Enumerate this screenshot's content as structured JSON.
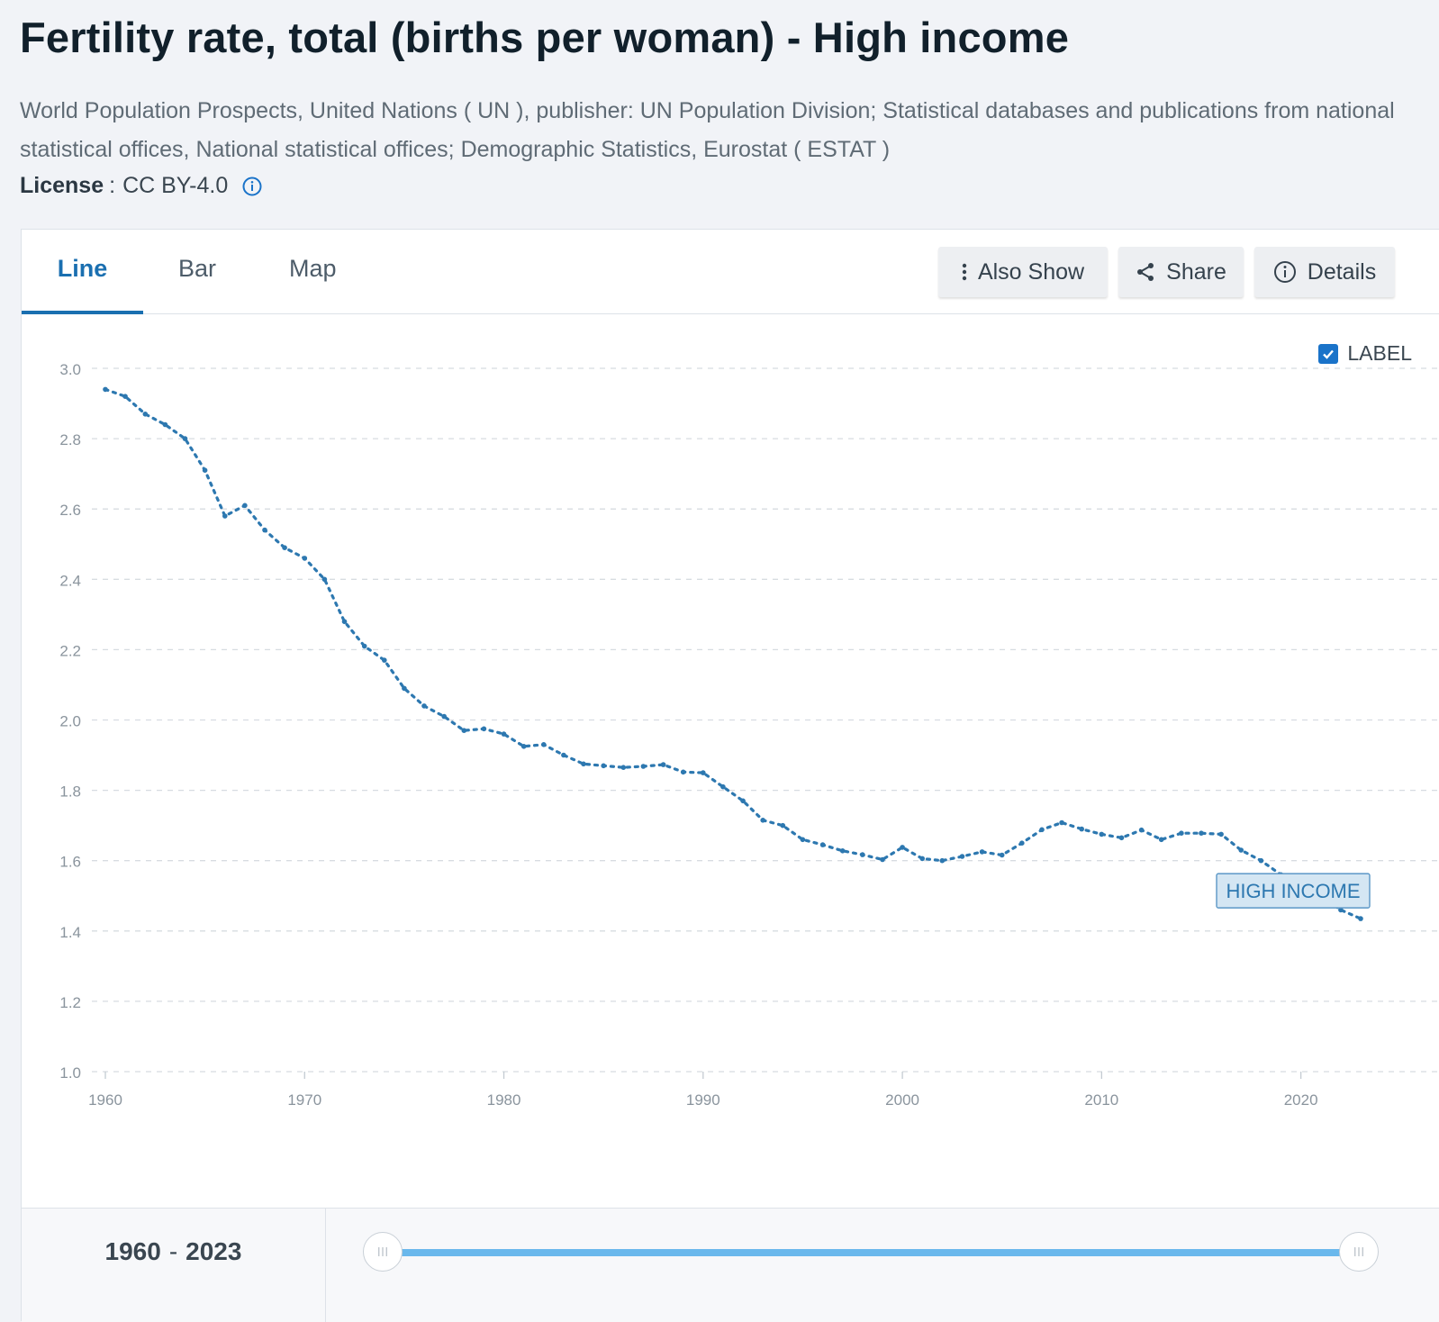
{
  "header": {
    "title": "Fertility rate, total (births per woman) - High income",
    "source": "World Population Prospects, United Nations ( UN ), publisher: UN Population Division; Statistical databases and publications from national statistical offices, National statistical offices; Demographic Statistics, Eurostat ( ESTAT )",
    "license_label": "License",
    "license_sep": ":",
    "license_value": "CC BY-4.0"
  },
  "tabs": [
    {
      "label": "Line",
      "active": true
    },
    {
      "label": "Bar",
      "active": false
    },
    {
      "label": "Map",
      "active": false
    }
  ],
  "toolbar": {
    "also_show": "Also Show",
    "share": "Share",
    "details": "Details"
  },
  "label_toggle": {
    "text": "LABEL",
    "checked": true
  },
  "range": {
    "start": "1960",
    "sep": "-",
    "end": "2023"
  },
  "colors": {
    "accent": "#1a6fb0",
    "line": "#2d78b0",
    "slider": "#6ab8ec",
    "checkbox": "#1a73c9"
  },
  "chart_data": {
    "type": "line",
    "title": "Fertility rate, total (births per woman) - High income",
    "xlabel": "",
    "ylabel": "",
    "xlim": [
      1960,
      2023
    ],
    "ylim": [
      1.0,
      3.0
    ],
    "x_ticks": [
      1960,
      1970,
      1980,
      1990,
      2000,
      2010,
      2020
    ],
    "y_ticks": [
      "1.0",
      "1.2",
      "1.4",
      "1.6",
      "1.8",
      "2.0",
      "2.2",
      "2.4",
      "2.6",
      "2.8",
      "3.0"
    ],
    "grid": true,
    "series": [
      {
        "name": "HIGH INCOME",
        "x": [
          1960,
          1961,
          1962,
          1963,
          1964,
          1965,
          1966,
          1967,
          1968,
          1969,
          1970,
          1971,
          1972,
          1973,
          1974,
          1975,
          1976,
          1977,
          1978,
          1979,
          1980,
          1981,
          1982,
          1983,
          1984,
          1985,
          1986,
          1987,
          1988,
          1989,
          1990,
          1991,
          1992,
          1993,
          1994,
          1995,
          1996,
          1997,
          1998,
          1999,
          2000,
          2001,
          2002,
          2003,
          2004,
          2005,
          2006,
          2007,
          2008,
          2009,
          2010,
          2011,
          2012,
          2013,
          2014,
          2015,
          2016,
          2017,
          2018,
          2019,
          2020,
          2021,
          2022,
          2023
        ],
        "values": [
          2.94,
          2.92,
          2.87,
          2.84,
          2.8,
          2.71,
          2.58,
          2.61,
          2.54,
          2.49,
          2.46,
          2.4,
          2.28,
          2.21,
          2.17,
          2.09,
          2.04,
          2.01,
          1.97,
          1.975,
          1.96,
          1.925,
          1.93,
          1.9,
          1.875,
          1.87,
          1.865,
          1.868,
          1.873,
          1.852,
          1.85,
          1.81,
          1.77,
          1.715,
          1.7,
          1.66,
          1.645,
          1.628,
          1.617,
          1.603,
          1.638,
          1.606,
          1.6,
          1.612,
          1.625,
          1.616,
          1.65,
          1.688,
          1.708,
          1.69,
          1.675,
          1.665,
          1.687,
          1.66,
          1.678,
          1.678,
          1.675,
          1.63,
          1.6,
          1.56,
          1.53,
          1.5,
          1.46,
          1.435
        ]
      }
    ],
    "series_label": "HIGH INCOME"
  }
}
